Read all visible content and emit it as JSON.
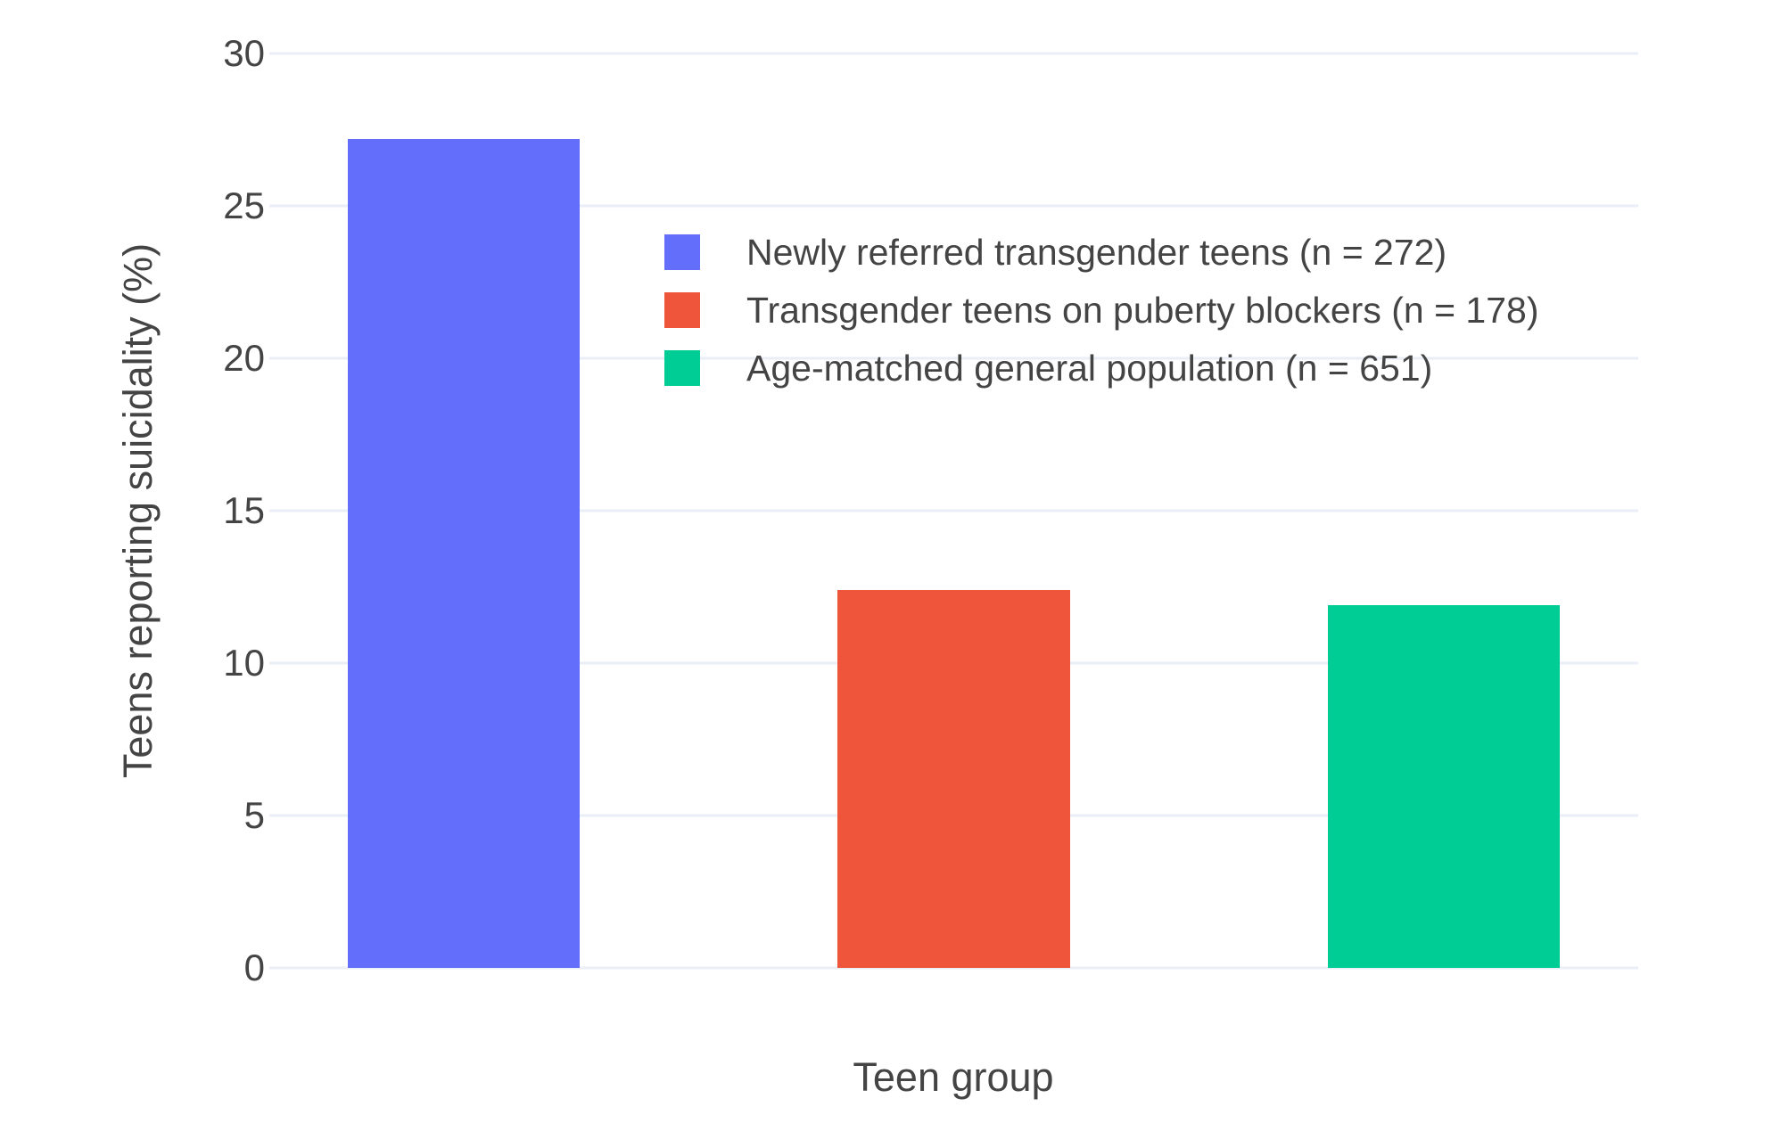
{
  "chart_data": {
    "type": "bar",
    "title": "",
    "xlabel": "Teen group",
    "ylabel": "Teens reporting suicidality (%)",
    "ylim": [
      0,
      30
    ],
    "yticks": [
      0,
      5,
      10,
      15,
      20,
      25,
      30
    ],
    "grid": true,
    "legend_position": "top-center-inside",
    "bars": [
      {
        "label": "Newly referred transgender teens (n = 272)",
        "value": 27.2,
        "color": "#636EFA"
      },
      {
        "label": "Transgender teens on puberty blockers (n = 178)",
        "value": 12.4,
        "color": "#EF553B"
      },
      {
        "label": "Age-matched general population (n = 651)",
        "value": 11.9,
        "color": "#00CC96"
      }
    ]
  },
  "colors": {
    "gridline": "#e9eef7",
    "text": "#444444",
    "background": "#ffffff"
  }
}
